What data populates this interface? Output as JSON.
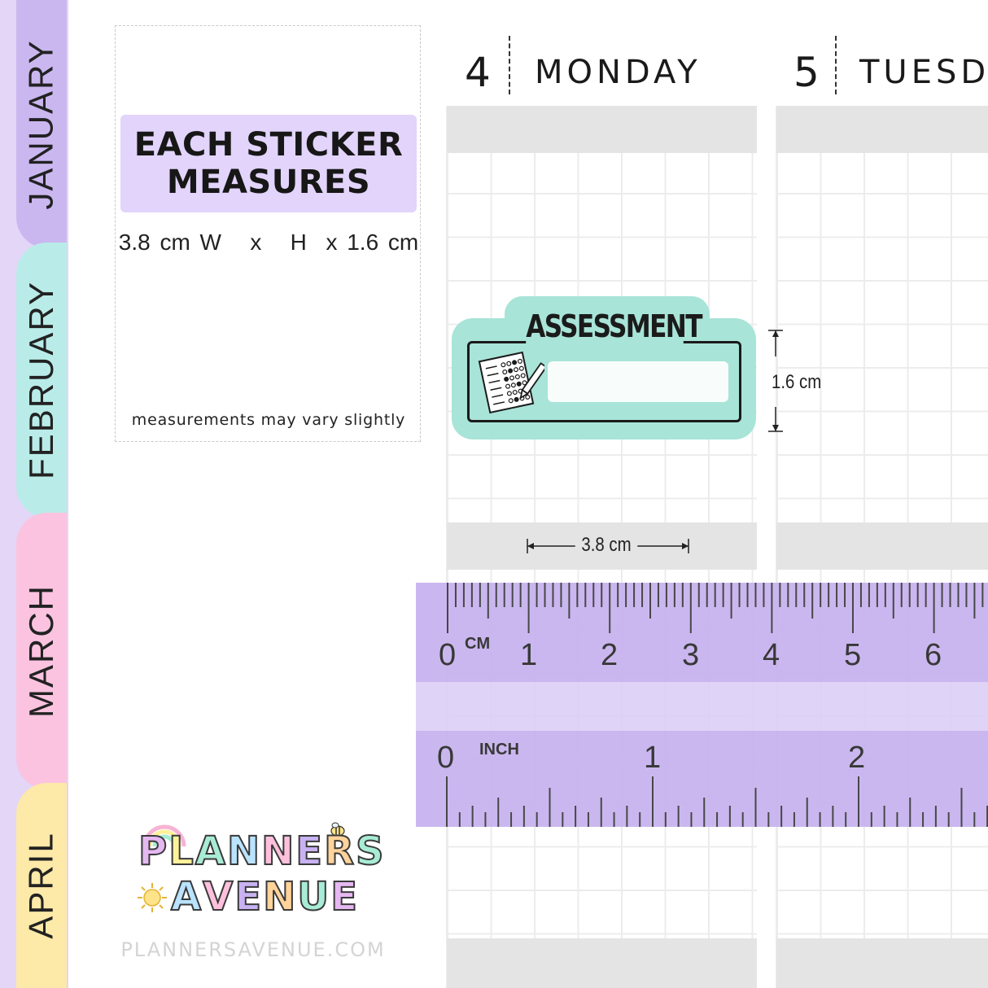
{
  "tabs": [
    {
      "label": "JANUARY",
      "color": "#cbb7f0"
    },
    {
      "label": "FEBRUARY",
      "color": "#b9ece8"
    },
    {
      "label": "MARCH",
      "color": "#fbc3e0"
    },
    {
      "label": "APRIL",
      "color": "#fde9a8"
    }
  ],
  "card": {
    "heading_line1": "EACH STICKER",
    "heading_line2": "MEASURES",
    "dimensions": "3.8 cm W   x   H  x 1.6 cm",
    "note": "measurements may vary slightly"
  },
  "days": [
    {
      "number": "4",
      "name": "MONDAY"
    },
    {
      "number": "5",
      "name": "TUESD"
    }
  ],
  "sticker": {
    "title": "ASSESSMENT",
    "color": "#a8e4d8",
    "icon": "test-sheet-pencil-icon"
  },
  "dimensions": {
    "height_label": "1.6 cm",
    "width_label": "3.8 cm"
  },
  "ruler": {
    "cm_unit": "CM",
    "inch_unit": "INCH",
    "cm_numbers": [
      "0",
      "1",
      "2",
      "3",
      "4",
      "5",
      "6"
    ],
    "inch_numbers": [
      "0",
      "1",
      "2"
    ],
    "color": "#c7b2ee"
  },
  "logo": {
    "line1": [
      "P",
      "L",
      "A",
      "N",
      "N",
      "E",
      "R",
      "S"
    ],
    "line2": [
      "A",
      "V",
      "E",
      "N",
      "U",
      "E"
    ],
    "letter_colors": [
      "#e6b8f2",
      "#fff19a",
      "#a8ecd6",
      "#b9e3ff",
      "#ffc0dd",
      "#c9b2f2",
      "#ffd39a",
      "#a8ecd6"
    ]
  },
  "website": "PLANNERSAVENUE.COM"
}
